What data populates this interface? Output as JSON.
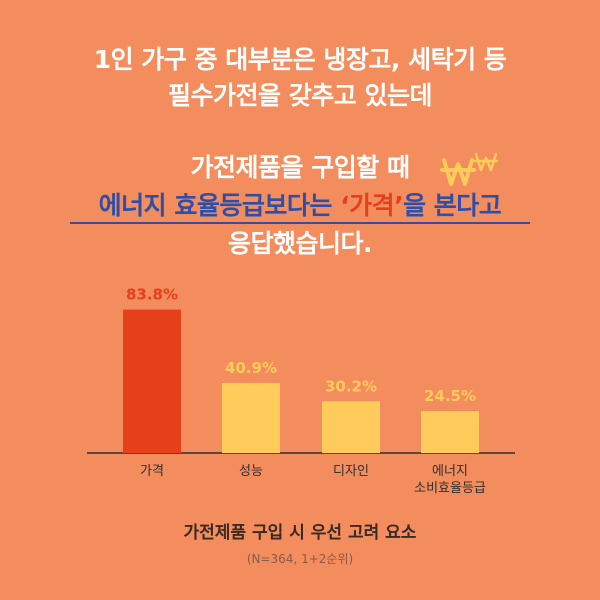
{
  "headline": {
    "line1": "1인 가구 중 대부분은 냉장고, 세탁기 등",
    "line2": "필수가전을 갖추고 있는데",
    "line3": "가전제품을 구입할 때",
    "line4_part1": "에너지 효율등급보다는 ",
    "line4_highlight": "‘가격’",
    "line4_part2": "을 본다고",
    "line5": "응답했습니다."
  },
  "colors": {
    "background": "#F48D5E",
    "highlight_bar": "#E6401B",
    "other_bar": "#FFCC5C",
    "blue_text": "#2E4EA8",
    "won_icon": "#FFCC5C"
  },
  "icons": {
    "won": "won-sign-icon"
  },
  "chart_data": {
    "type": "bar",
    "categories": [
      "가격",
      "성능",
      "디자인",
      "에너지\n소비효율등급"
    ],
    "values": [
      83.8,
      40.9,
      30.2,
      24.5
    ],
    "value_labels": [
      "83.8%",
      "40.9%",
      "30.2%",
      "24.5%"
    ],
    "ylim": [
      0,
      100
    ],
    "grid": false,
    "title": "가전제품 구입 시 우선 고려 요소",
    "subtitle": "(N=364, 1+2순위)"
  },
  "caption": "가전제품 구입 시 우선 고려 요소",
  "note": "(N=364, 1+2순위)"
}
